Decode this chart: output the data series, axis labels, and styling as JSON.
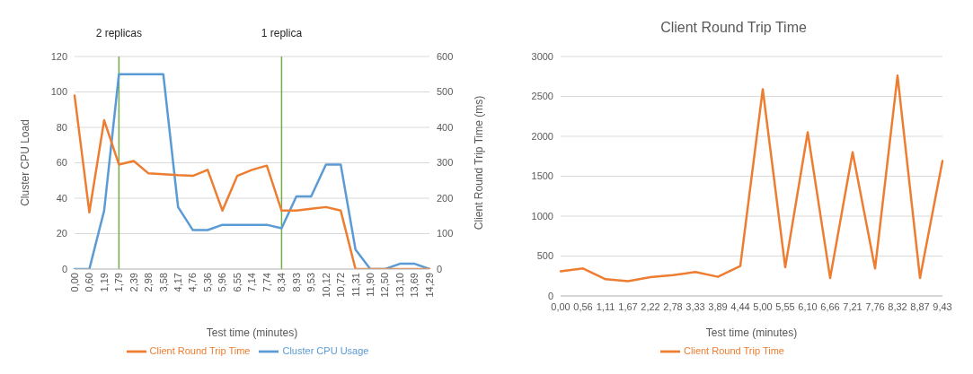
{
  "chart_data": [
    {
      "type": "line",
      "xlabel": "Test time (minutes)",
      "ylabel": "Cluster CPU Load",
      "y2label": "Client Round Trip Time (ms)",
      "categories": [
        "0,00",
        "0,60",
        "1,19",
        "1,79",
        "2,39",
        "2,98",
        "3,58",
        "4,17",
        "4,76",
        "5,36",
        "5,96",
        "6,55",
        "7,14",
        "7,74",
        "8,34",
        "8,93",
        "9,53",
        "10,12",
        "10,72",
        "11,31",
        "11,90",
        "12,50",
        "13,10",
        "13,69",
        "14,29"
      ],
      "series": [
        {
          "name": "Cluster CPU Usage",
          "color": "#5b9bd5",
          "values": [
            0,
            0,
            33,
            110,
            110,
            110,
            110,
            35,
            22,
            22,
            25,
            25,
            25,
            25,
            23,
            41,
            41,
            59,
            59,
            11,
            0,
            0,
            3,
            3,
            0
          ]
        },
        {
          "name": "Client Round Trip Time",
          "color": "#ed7d31",
          "axis": "y2",
          "values": [
            490,
            160,
            420,
            295,
            305,
            270,
            268,
            265,
            263,
            280,
            165,
            263,
            280,
            292,
            165,
            165,
            170,
            175,
            165,
            0,
            0,
            0,
            0,
            0,
            0
          ]
        }
      ],
      "ylim": [
        0,
        120
      ],
      "yticks": [
        0,
        20,
        40,
        60,
        80,
        100,
        120
      ],
      "y2lim": [
        0,
        600
      ],
      "y2ticks": [
        0,
        100,
        200,
        300,
        400,
        500,
        600
      ],
      "ref_lines": [
        {
          "axis": "x",
          "value": "1,79",
          "label": "2 replicas",
          "color": "#70ad47"
        },
        {
          "axis": "x",
          "value": "8,34",
          "label": "1 replica",
          "color": "#70ad47"
        }
      ],
      "grid": "y",
      "legend": "bottom",
      "marker": "none",
      "line_style": "solid"
    },
    {
      "type": "line",
      "title": "Client Round Trip Time",
      "xlabel": "Test time (minutes)",
      "categories": [
        "0,00",
        "0,56",
        "1,11",
        "1,67",
        "2,22",
        "2,78",
        "3,33",
        "3,89",
        "4,44",
        "5,00",
        "5,55",
        "6,10",
        "6,66",
        "7,21",
        "7,76",
        "8,32",
        "8,87",
        "9,43"
      ],
      "series": [
        {
          "name": "Client Round Trip Time",
          "color": "#ed7d31",
          "values": [
            310,
            345,
            210,
            185,
            235,
            260,
            300,
            240,
            375,
            2590,
            360,
            2050,
            225,
            1800,
            345,
            2760,
            225,
            1690
          ]
        }
      ],
      "ylim": [
        0,
        3000
      ],
      "yticks": [
        0,
        500,
        1000,
        1500,
        2000,
        2500,
        3000
      ],
      "grid": "y",
      "legend": "bottom",
      "marker": "none",
      "line_style": "solid"
    }
  ]
}
